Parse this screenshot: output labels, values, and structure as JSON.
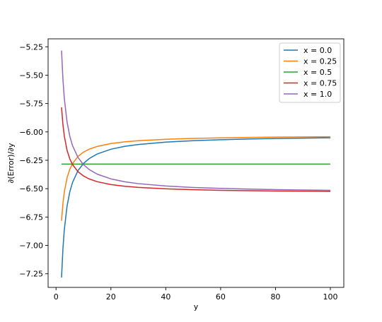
{
  "chart_data": {
    "type": "line",
    "title": "",
    "xlabel": "y",
    "ylabel": "∂(Error)/∂y",
    "xlim": [
      -2.9,
      104.9
    ],
    "ylim": [
      -7.37,
      -5.18
    ],
    "x_ticks": [
      0,
      20,
      40,
      60,
      80,
      100
    ],
    "x_tick_labels": [
      "0",
      "20",
      "40",
      "60",
      "80",
      "100"
    ],
    "y_ticks": [
      -5.25,
      -5.5,
      -5.75,
      -6.0,
      -6.25,
      -6.5,
      -6.75,
      -7.0,
      -7.25
    ],
    "y_tick_labels": [
      "−5.25",
      "−5.50",
      "−5.75",
      "−6.00",
      "−6.25",
      "−6.50",
      "−6.75",
      "−7.00",
      "−7.25"
    ],
    "grid": false,
    "legend_position": "top-right",
    "x": [
      2,
      2.5,
      3,
      4,
      5,
      6,
      8,
      10,
      12,
      15,
      20,
      25,
      30,
      40,
      50,
      60,
      70,
      80,
      90,
      100
    ],
    "series": [
      {
        "name": "x = 0.0",
        "color": "#1f77b4",
        "values": [
          -7.2832,
          -7.0319,
          -6.8644,
          -6.655,
          -6.5294,
          -6.4456,
          -6.3409,
          -6.2781,
          -6.2362,
          -6.1943,
          -6.1525,
          -6.1274,
          -6.1106,
          -6.0897,
          -6.0771,
          -6.0688,
          -6.0628,
          -6.0583,
          -6.0548,
          -6.052
        ]
      },
      {
        "name": "x = 0.25",
        "color": "#ff7f0e",
        "values": [
          -6.7832,
          -6.6319,
          -6.5311,
          -6.405,
          -6.3294,
          -6.279,
          -6.216,
          -6.1782,
          -6.153,
          -6.1278,
          -6.1026,
          -6.0875,
          -6.0774,
          -6.0648,
          -6.0572,
          -6.0522,
          -6.0486,
          -6.0459,
          -6.0438,
          -6.0421
        ]
      },
      {
        "name": "x = 0.5",
        "color": "#2ca02c",
        "values": [
          -6.2832,
          -6.2832,
          -6.2832,
          -6.2832,
          -6.2832,
          -6.2832,
          -6.2832,
          -6.2832,
          -6.2832,
          -6.2832,
          -6.2832,
          -6.2832,
          -6.2832,
          -6.2832,
          -6.2832,
          -6.2832,
          -6.2832,
          -6.2832,
          -6.2832,
          -6.2832
        ]
      },
      {
        "name": "x = 0.75",
        "color": "#d62728",
        "values": [
          -5.7832,
          -5.9345,
          -6.0353,
          -6.1614,
          -6.237,
          -6.2874,
          -6.3504,
          -6.3882,
          -6.4134,
          -6.4386,
          -6.4638,
          -6.4789,
          -6.489,
          -6.5016,
          -6.5092,
          -6.5142,
          -6.5178,
          -6.5205,
          -6.5226,
          -6.5243
        ]
      },
      {
        "name": "x = 1.0",
        "color": "#9467bd",
        "values": [
          -5.2832,
          -5.5345,
          -5.702,
          -5.9114,
          -6.037,
          -6.1208,
          -6.2255,
          -6.2883,
          -6.3302,
          -6.3721,
          -6.4139,
          -6.439,
          -6.4558,
          -6.4767,
          -6.4893,
          -6.4976,
          -6.5036,
          -6.5081,
          -6.5116,
          -6.5144
        ]
      }
    ]
  }
}
